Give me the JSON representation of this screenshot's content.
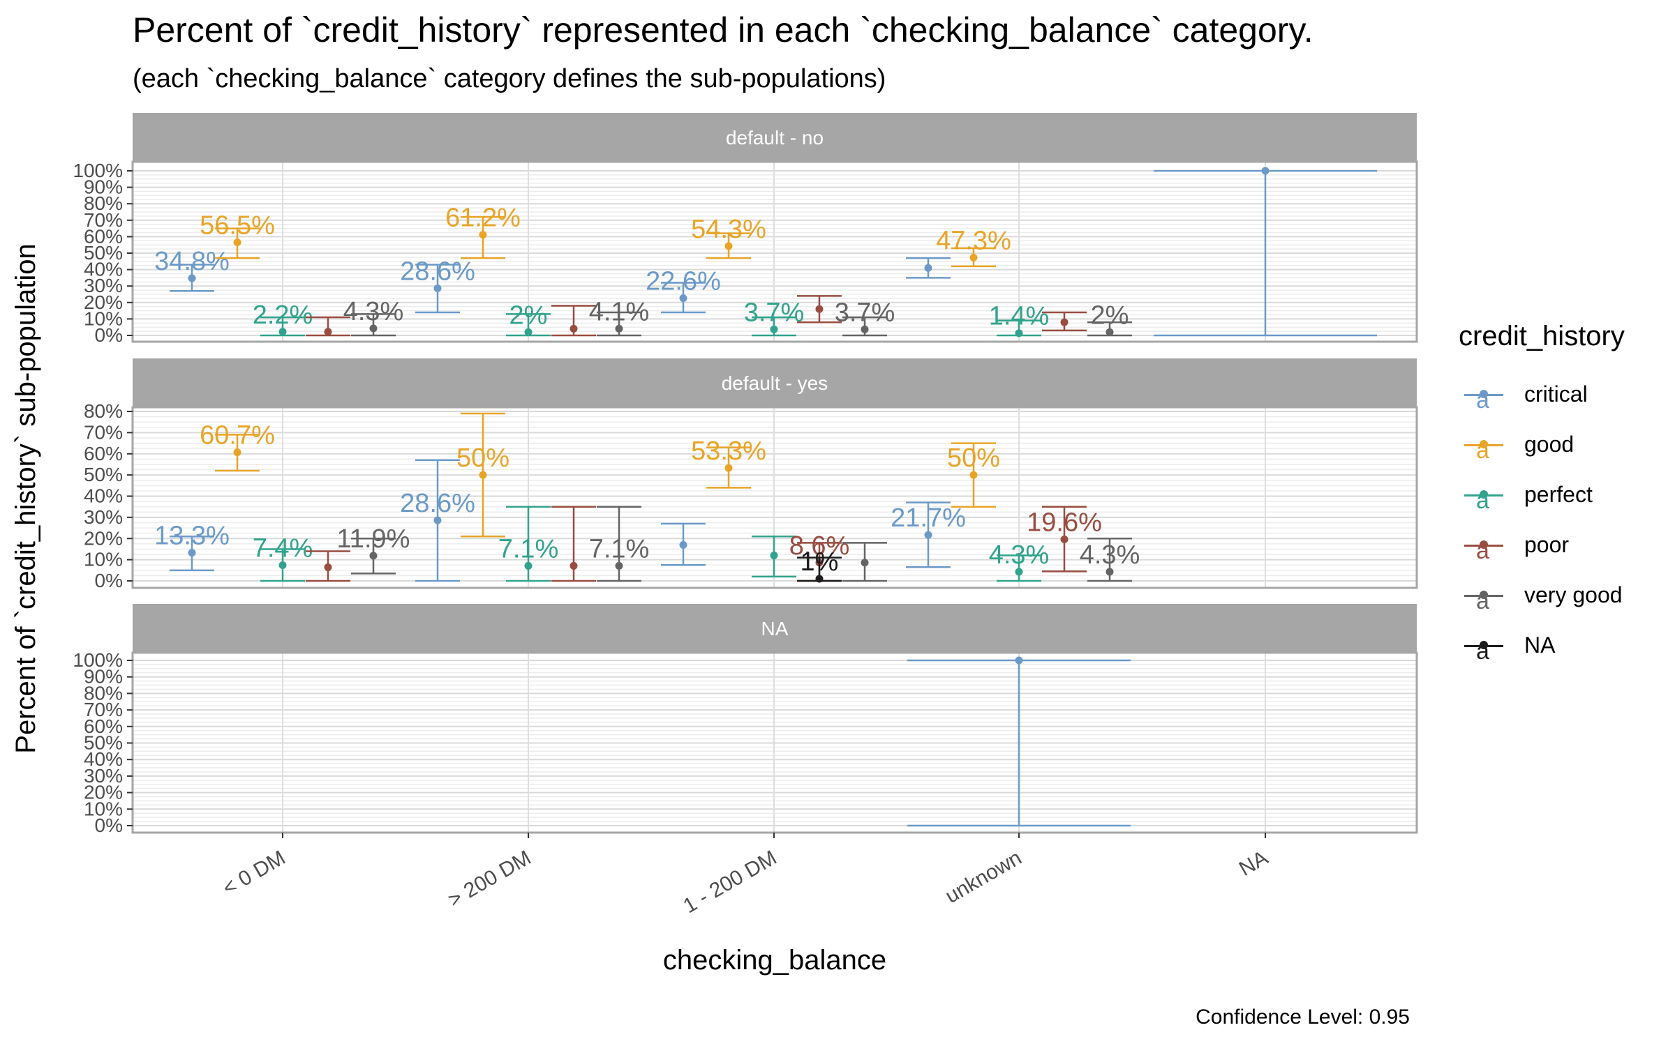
{
  "title": "Percent of `credit_history` represented in each `checking_balance` category.",
  "subtitle": "(each `checking_balance` category defines the sub-populations)",
  "caption": "Confidence Level: 0.95",
  "legend": {
    "title": "credit_history",
    "glyph": "a",
    "items": [
      {
        "label": "critical",
        "color": "#6b9ac8"
      },
      {
        "label": "good",
        "color": "#e8a427"
      },
      {
        "label": "perfect",
        "color": "#31a38c"
      },
      {
        "label": "poor",
        "color": "#984d40"
      },
      {
        "label": "very good",
        "color": "#646464"
      },
      {
        "label": "NA",
        "color": "#1c1c1c"
      }
    ]
  },
  "chart_data": {
    "type": "scatter",
    "xlabel": "checking_balance",
    "ylabel": "Percent of `credit_history` sub-population",
    "categories": [
      "< 0 DM",
      "> 200 DM",
      "1 - 200 DM",
      "unknown",
      "NA"
    ],
    "series_names": [
      "critical",
      "good",
      "perfect",
      "poor",
      "very good",
      "NA"
    ],
    "panels": [
      {
        "label": "default - no",
        "ylim": [
          0,
          100
        ],
        "yticks": [
          "0%",
          "10%",
          "20%",
          "30%",
          "40%",
          "50%",
          "60%",
          "70%",
          "80%",
          "90%",
          "100%"
        ],
        "points": [
          {
            "cat": 0,
            "series": 0,
            "value": 34.8,
            "low": 27,
            "high": 43,
            "label": "34.8%"
          },
          {
            "cat": 0,
            "series": 1,
            "value": 56.5,
            "low": 47,
            "high": 65,
            "label": "56.5%"
          },
          {
            "cat": 0,
            "series": 2,
            "value": 2.2,
            "low": 0,
            "high": 11,
            "label": "2.2%"
          },
          {
            "cat": 0,
            "series": 3,
            "value": 2.2,
            "low": 0,
            "high": 11,
            "label": ""
          },
          {
            "cat": 0,
            "series": 4,
            "value": 4.3,
            "low": 0,
            "high": 13,
            "label": "4.3%"
          },
          {
            "cat": 1,
            "series": 0,
            "value": 28.6,
            "low": 14,
            "high": 43,
            "label": "28.6%"
          },
          {
            "cat": 1,
            "series": 1,
            "value": 61.2,
            "low": 47,
            "high": 72,
            "label": "61.2%"
          },
          {
            "cat": 1,
            "series": 2,
            "value": 2,
            "low": 0,
            "high": 13,
            "label": "2%"
          },
          {
            "cat": 1,
            "series": 3,
            "value": 4.1,
            "low": 0,
            "high": 18,
            "label": ""
          },
          {
            "cat": 1,
            "series": 4,
            "value": 4.1,
            "low": 0,
            "high": 14,
            "label": "4.1%"
          },
          {
            "cat": 2,
            "series": 0,
            "value": 22.6,
            "low": 14,
            "high": 32,
            "label": "22.6%"
          },
          {
            "cat": 2,
            "series": 1,
            "value": 54.3,
            "low": 47,
            "high": 62,
            "label": "54.3%"
          },
          {
            "cat": 2,
            "series": 2,
            "value": 3.7,
            "low": 0,
            "high": 11,
            "label": "3.7%"
          },
          {
            "cat": 2,
            "series": 3,
            "value": 16,
            "low": 8,
            "high": 24,
            "label": ""
          },
          {
            "cat": 2,
            "series": 4,
            "value": 3.7,
            "low": 0,
            "high": 11,
            "label": "3.7%"
          },
          {
            "cat": 3,
            "series": 0,
            "value": 41,
            "low": 35,
            "high": 47,
            "label": ""
          },
          {
            "cat": 3,
            "series": 1,
            "value": 47.3,
            "low": 42,
            "high": 53,
            "label": "47.3%"
          },
          {
            "cat": 3,
            "series": 2,
            "value": 1.4,
            "low": 0,
            "high": 9,
            "label": "1.4%"
          },
          {
            "cat": 3,
            "series": 3,
            "value": 8,
            "low": 3,
            "high": 14,
            "label": ""
          },
          {
            "cat": 3,
            "series": 4,
            "value": 2,
            "low": 0,
            "high": 8,
            "label": "2%"
          },
          {
            "cat": 4,
            "series": 0,
            "value": 100,
            "low": 0,
            "high": 100,
            "label": ""
          }
        ]
      },
      {
        "label": "default - yes",
        "ylim": [
          0,
          80
        ],
        "yticks": [
          "0%",
          "10%",
          "20%",
          "30%",
          "40%",
          "50%",
          "60%",
          "70%",
          "80%"
        ],
        "points": [
          {
            "cat": 0,
            "series": 0,
            "value": 13.3,
            "low": 5,
            "high": 21,
            "label": "13.3%"
          },
          {
            "cat": 0,
            "series": 1,
            "value": 60.7,
            "low": 52,
            "high": 69,
            "label": "60.7%"
          },
          {
            "cat": 0,
            "series": 2,
            "value": 7.4,
            "low": 0,
            "high": 15,
            "label": "7.4%"
          },
          {
            "cat": 0,
            "series": 3,
            "value": 6.4,
            "low": 0,
            "high": 14,
            "label": ""
          },
          {
            "cat": 0,
            "series": 4,
            "value": 11.9,
            "low": 3.5,
            "high": 20,
            "label": "11.9%"
          },
          {
            "cat": 1,
            "series": 0,
            "value": 28.6,
            "low": 0,
            "high": 57,
            "label": "28.6%"
          },
          {
            "cat": 1,
            "series": 1,
            "value": 50,
            "low": 21,
            "high": 79,
            "label": "50%"
          },
          {
            "cat": 1,
            "series": 2,
            "value": 7.1,
            "low": 0,
            "high": 35,
            "label": "7.1%"
          },
          {
            "cat": 1,
            "series": 3,
            "value": 7.1,
            "low": 0,
            "high": 35,
            "label": ""
          },
          {
            "cat": 1,
            "series": 4,
            "value": 7.1,
            "low": 0,
            "high": 35,
            "label": "7.1%"
          },
          {
            "cat": 2,
            "series": 0,
            "value": 17,
            "low": 7.5,
            "high": 27,
            "label": ""
          },
          {
            "cat": 2,
            "series": 1,
            "value": 53.3,
            "low": 44,
            "high": 63,
            "label": "53.3%"
          },
          {
            "cat": 2,
            "series": 2,
            "value": 12,
            "low": 2,
            "high": 21,
            "label": ""
          },
          {
            "cat": 2,
            "series": 3,
            "value": 8.6,
            "low": 0,
            "high": 18,
            "label": "8.6%"
          },
          {
            "cat": 2,
            "series": 4,
            "value": 8.6,
            "low": 0,
            "high": 18,
            "label": ""
          },
          {
            "cat": 2,
            "series": 5,
            "value": 1,
            "low": 0,
            "high": 11,
            "label": "1%"
          },
          {
            "cat": 3,
            "series": 0,
            "value": 21.7,
            "low": 6.5,
            "high": 37,
            "label": "21.7%"
          },
          {
            "cat": 3,
            "series": 1,
            "value": 50,
            "low": 35,
            "high": 65,
            "label": "50%"
          },
          {
            "cat": 3,
            "series": 2,
            "value": 4.3,
            "low": 0,
            "high": 12,
            "label": "4.3%"
          },
          {
            "cat": 3,
            "series": 3,
            "value": 19.6,
            "low": 4.5,
            "high": 35,
            "label": "19.6%"
          },
          {
            "cat": 3,
            "series": 4,
            "value": 4.3,
            "low": 0,
            "high": 20,
            "label": "4.3%"
          }
        ]
      },
      {
        "label": "NA",
        "ylim": [
          0,
          100
        ],
        "yticks": [
          "0%",
          "10%",
          "20%",
          "30%",
          "40%",
          "50%",
          "60%",
          "70%",
          "80%",
          "90%",
          "100%"
        ],
        "points": [
          {
            "cat": 3,
            "series": 0,
            "value": 100,
            "low": 0,
            "high": 100,
            "label": ""
          }
        ]
      }
    ]
  }
}
